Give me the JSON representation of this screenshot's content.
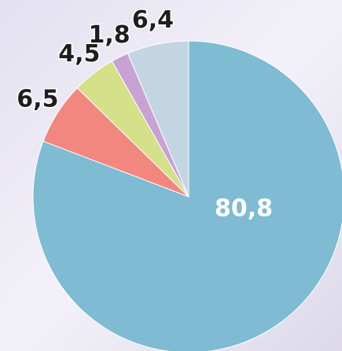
{
  "chart_data": {
    "type": "pie",
    "categories": [
      null,
      null,
      null,
      null,
      null
    ],
    "values": [
      80.8,
      6.5,
      4.5,
      1.8,
      6.4
    ],
    "value_labels": [
      "80,8",
      "6,5",
      "4,5",
      "1,8",
      "6,4"
    ],
    "colors": [
      "#7fbbd2",
      "#f2877f",
      "#d4e08a",
      "#c8a2d2",
      "#c3d5e2"
    ]
  }
}
